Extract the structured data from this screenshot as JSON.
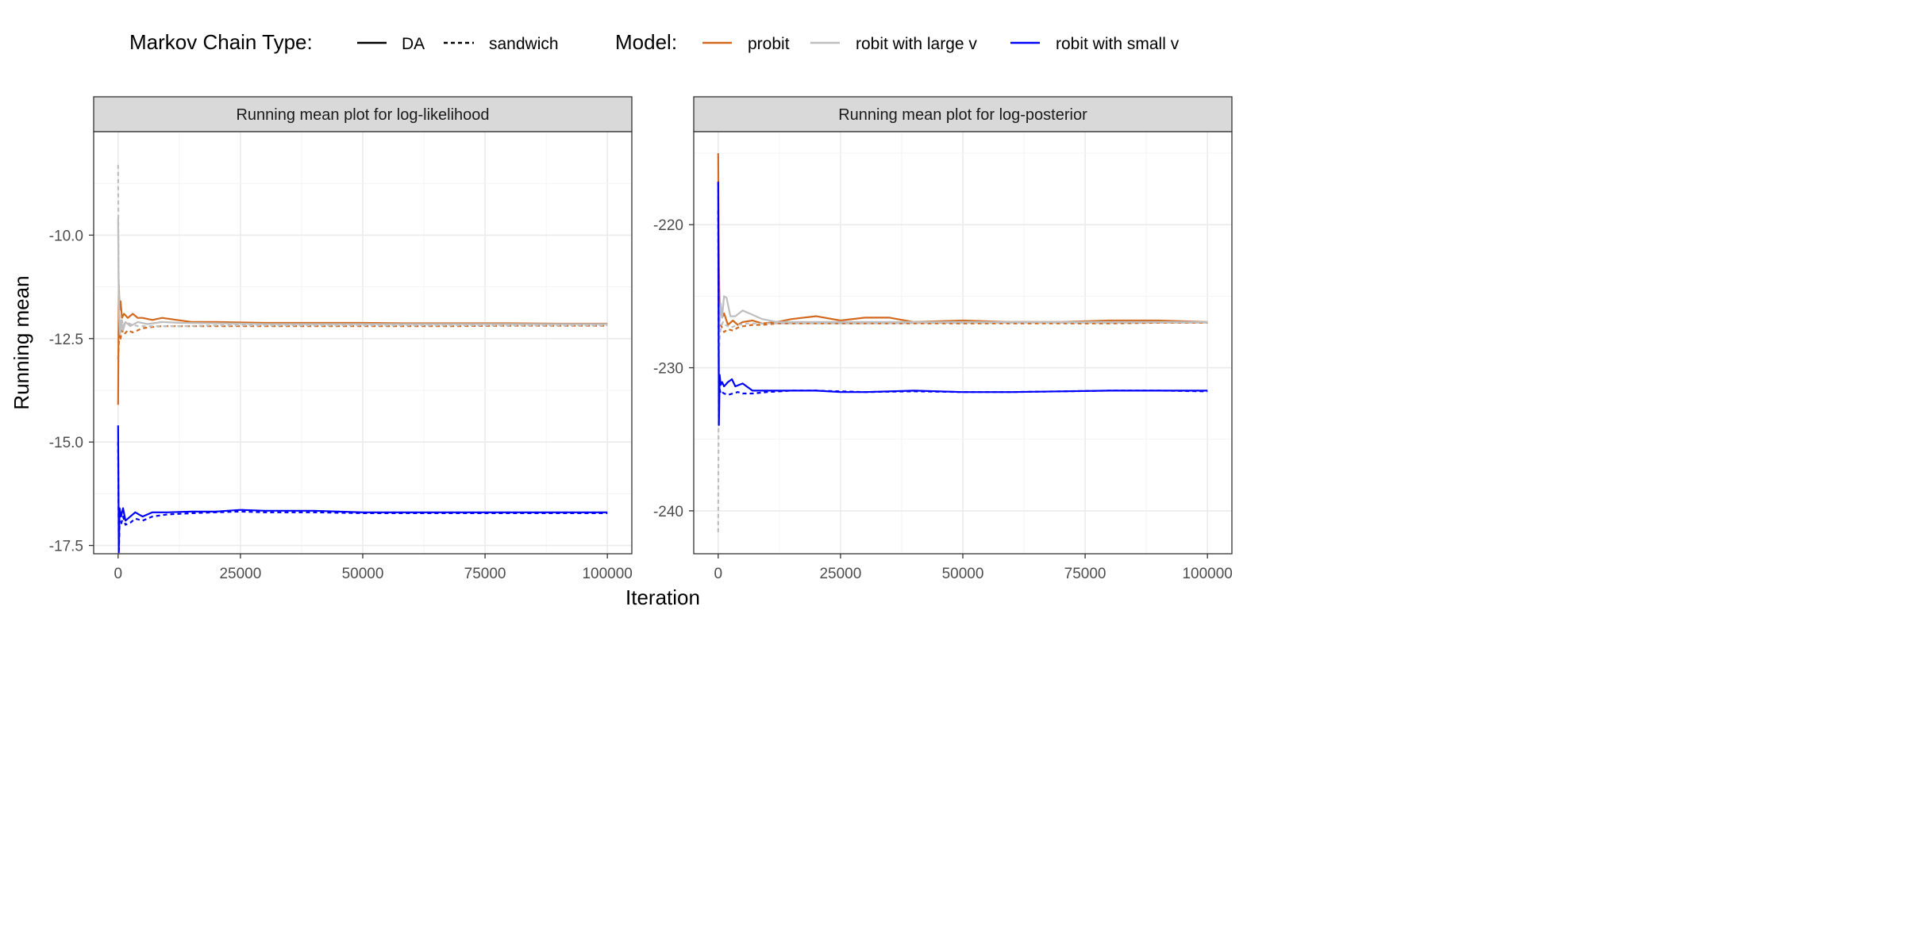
{
  "legend": {
    "chain_title": "Markov Chain Type:",
    "chain_items": [
      {
        "label": "DA",
        "linetype": "solid"
      },
      {
        "label": "sandwich",
        "linetype": "dashed"
      }
    ],
    "model_title": "Model:",
    "model_items": [
      {
        "label": "probit",
        "color": "#D2691E"
      },
      {
        "label": "robit with large v",
        "color": "#BEBEBE"
      },
      {
        "label": "robit with small v",
        "color": "#0000FF"
      }
    ]
  },
  "xlabel": "Iteration",
  "ylabel": "Running mean",
  "chart_data": [
    {
      "type": "line",
      "title": "Running mean plot for log-likelihood",
      "xlim": [
        -5000,
        105000
      ],
      "ylim": [
        -17.7,
        -7.5
      ],
      "xticks": [
        0,
        25000,
        50000,
        75000,
        100000
      ],
      "xtick_labels": [
        "0",
        "25000",
        "50000",
        "75000",
        "100000"
      ],
      "yticks": [
        -17.5,
        -15.0,
        -12.5,
        -10.0
      ],
      "ytick_labels": [
        "-17.5",
        "-15.0",
        "-12.5",
        "-10.0"
      ],
      "grid": true,
      "series": [
        {
          "model": "probit",
          "chain": "DA",
          "x": [
            0,
            150,
            300,
            500,
            800,
            1200,
            2000,
            3000,
            4000,
            5000,
            7000,
            9000,
            12000,
            15000,
            20000,
            30000,
            40000,
            50000,
            60000,
            70000,
            80000,
            90000,
            100000
          ],
          "y": [
            -14.1,
            -11.2,
            -11.8,
            -11.6,
            -12.0,
            -11.9,
            -12.0,
            -11.9,
            -12.0,
            -12.0,
            -12.05,
            -12.0,
            -12.05,
            -12.1,
            -12.1,
            -12.12,
            -12.12,
            -12.12,
            -12.13,
            -12.13,
            -12.13,
            -12.14,
            -12.14
          ]
        },
        {
          "model": "probit",
          "chain": "sandwich",
          "x": [
            0,
            150,
            300,
            500,
            800,
            1200,
            2000,
            3000,
            4000,
            5000,
            7000,
            9000,
            12000,
            15000,
            20000,
            30000,
            40000,
            50000,
            60000,
            70000,
            80000,
            90000,
            100000
          ],
          "y": [
            -13.0,
            -12.6,
            -12.4,
            -12.5,
            -12.3,
            -12.4,
            -12.3,
            -12.35,
            -12.3,
            -12.25,
            -12.22,
            -12.2,
            -12.2,
            -12.2,
            -12.2,
            -12.2,
            -12.2,
            -12.2,
            -12.2,
            -12.2,
            -12.19,
            -12.19,
            -12.19
          ]
        },
        {
          "model": "robit with large v",
          "chain": "DA",
          "x": [
            0,
            100,
            200,
            400,
            700,
            1000,
            1500,
            2500,
            4000,
            6000,
            9000,
            13000,
            20000,
            30000,
            50000,
            75000,
            100000
          ],
          "y": [
            -9.6,
            -11.0,
            -12.0,
            -12.4,
            -12.1,
            -12.3,
            -12.1,
            -12.2,
            -12.1,
            -12.15,
            -12.1,
            -12.12,
            -12.13,
            -12.15,
            -12.15,
            -12.15,
            -12.15
          ]
        },
        {
          "model": "robit with large v",
          "chain": "sandwich",
          "x": [
            0,
            100,
            200,
            400,
            700,
            1000,
            1500,
            2500,
            4000,
            6000,
            9000,
            13000,
            20000,
            30000,
            50000,
            75000,
            100000
          ],
          "y": [
            -8.3,
            -10.8,
            -11.8,
            -12.2,
            -12.0,
            -12.2,
            -12.1,
            -12.15,
            -12.2,
            -12.2,
            -12.2,
            -12.2,
            -12.18,
            -12.18,
            -12.18,
            -12.18,
            -12.18
          ]
        },
        {
          "model": "robit with small v",
          "chain": "DA",
          "x": [
            0,
            150,
            300,
            600,
            1000,
            1500,
            2500,
            3500,
            5000,
            7000,
            10000,
            15000,
            20000,
            25000,
            30000,
            40000,
            50000,
            60000,
            70000,
            80000,
            90000,
            100000
          ],
          "y": [
            -14.6,
            -17.6,
            -16.6,
            -16.8,
            -16.6,
            -16.9,
            -16.8,
            -16.7,
            -16.8,
            -16.7,
            -16.7,
            -16.68,
            -16.68,
            -16.64,
            -16.66,
            -16.66,
            -16.7,
            -16.7,
            -16.7,
            -16.7,
            -16.7,
            -16.7
          ]
        },
        {
          "model": "robit with small v",
          "chain": "sandwich",
          "x": [
            0,
            150,
            300,
            600,
            1000,
            1500,
            2500,
            3500,
            5000,
            7000,
            10000,
            15000,
            20000,
            25000,
            30000,
            40000,
            50000,
            60000,
            70000,
            80000,
            90000,
            100000
          ],
          "y": [
            -15.0,
            -17.7,
            -16.9,
            -17.0,
            -16.8,
            -17.0,
            -16.95,
            -16.85,
            -16.9,
            -16.8,
            -16.75,
            -16.72,
            -16.7,
            -16.68,
            -16.7,
            -16.7,
            -16.72,
            -16.72,
            -16.72,
            -16.72,
            -16.72,
            -16.72
          ]
        }
      ]
    },
    {
      "type": "line",
      "title": "Running mean plot for log-posterior",
      "xlim": [
        -5000,
        105000
      ],
      "ylim": [
        -243.0,
        -213.5
      ],
      "xticks": [
        0,
        25000,
        50000,
        75000,
        100000
      ],
      "xtick_labels": [
        "0",
        "25000",
        "50000",
        "75000",
        "100000"
      ],
      "yticks": [
        -240,
        -230,
        -220
      ],
      "ytick_labels": [
        "-240",
        "-230",
        "-220"
      ],
      "grid": true,
      "series": [
        {
          "model": "probit",
          "chain": "DA",
          "x": [
            0,
            150,
            300,
            500,
            800,
            1200,
            2000,
            3000,
            4000,
            5000,
            7000,
            9000,
            12000,
            15000,
            20000,
            25000,
            30000,
            35000,
            40000,
            50000,
            60000,
            70000,
            80000,
            90000,
            100000
          ],
          "y": [
            -215.0,
            -223.0,
            -226.0,
            -225.8,
            -226.5,
            -226.2,
            -227.0,
            -226.7,
            -227.0,
            -226.8,
            -226.7,
            -226.9,
            -226.8,
            -226.6,
            -226.4,
            -226.7,
            -226.5,
            -226.5,
            -226.8,
            -226.7,
            -226.8,
            -226.8,
            -226.7,
            -226.7,
            -226.8
          ]
        },
        {
          "model": "probit",
          "chain": "sandwich",
          "x": [
            0,
            150,
            300,
            500,
            800,
            1200,
            2000,
            3000,
            4000,
            5000,
            7000,
            9000,
            12000,
            15000,
            20000,
            30000,
            40000,
            50000,
            60000,
            70000,
            80000,
            90000,
            100000
          ],
          "y": [
            -217.0,
            -225.0,
            -226.8,
            -227.0,
            -227.2,
            -227.5,
            -227.3,
            -227.4,
            -227.2,
            -227.1,
            -227.0,
            -227.0,
            -226.9,
            -226.9,
            -226.9,
            -226.9,
            -226.9,
            -226.9,
            -226.9,
            -226.9,
            -226.9,
            -226.85,
            -226.85
          ]
        },
        {
          "model": "robit with large v",
          "chain": "DA",
          "x": [
            0,
            150,
            300,
            500,
            800,
            1200,
            1700,
            2500,
            3500,
            5000,
            7000,
            9000,
            12000,
            16000,
            20000,
            30000,
            50000,
            75000,
            100000
          ],
          "y": [
            -223.0,
            -227.5,
            -226.5,
            -225.5,
            -226.5,
            -225.0,
            -225.1,
            -226.4,
            -226.4,
            -226.0,
            -226.3,
            -226.6,
            -226.8,
            -226.8,
            -226.8,
            -226.8,
            -226.8,
            -226.8,
            -226.8
          ]
        },
        {
          "model": "robit with large v",
          "chain": "sandwich",
          "x": [
            0,
            100,
            200,
            400,
            700,
            1000,
            1500,
            2500,
            4000,
            6000,
            9000,
            13000,
            20000,
            30000,
            50000,
            75000,
            100000
          ],
          "y": [
            -241.5,
            -232.0,
            -228.5,
            -227.5,
            -227.0,
            -226.8,
            -227.0,
            -227.2,
            -227.0,
            -226.9,
            -226.9,
            -226.9,
            -226.9,
            -226.9,
            -226.85,
            -226.85,
            -226.85
          ]
        },
        {
          "model": "robit with small v",
          "chain": "DA",
          "x": [
            0,
            150,
            300,
            500,
            800,
            1200,
            2000,
            2800,
            3500,
            5000,
            7000,
            10000,
            15000,
            20000,
            25000,
            30000,
            40000,
            50000,
            60000,
            70000,
            80000,
            90000,
            100000
          ],
          "y": [
            -217.0,
            -234.0,
            -230.5,
            -231.2,
            -231.0,
            -231.3,
            -231.0,
            -230.8,
            -231.3,
            -231.1,
            -231.6,
            -231.6,
            -231.6,
            -231.6,
            -231.7,
            -231.7,
            -231.6,
            -231.7,
            -231.7,
            -231.65,
            -231.6,
            -231.6,
            -231.6
          ]
        },
        {
          "model": "robit with small v",
          "chain": "sandwich",
          "x": [
            0,
            150,
            300,
            500,
            800,
            1200,
            2000,
            3000,
            4000,
            5000,
            7000,
            10000,
            15000,
            20000,
            25000,
            30000,
            40000,
            50000,
            60000,
            70000,
            80000,
            90000,
            100000
          ],
          "y": [
            -219.0,
            -232.0,
            -231.5,
            -231.8,
            -231.7,
            -231.8,
            -231.9,
            -231.8,
            -231.7,
            -231.8,
            -231.8,
            -231.7,
            -231.6,
            -231.6,
            -231.65,
            -231.7,
            -231.65,
            -231.7,
            -231.7,
            -231.65,
            -231.6,
            -231.6,
            -231.65
          ]
        }
      ]
    }
  ]
}
